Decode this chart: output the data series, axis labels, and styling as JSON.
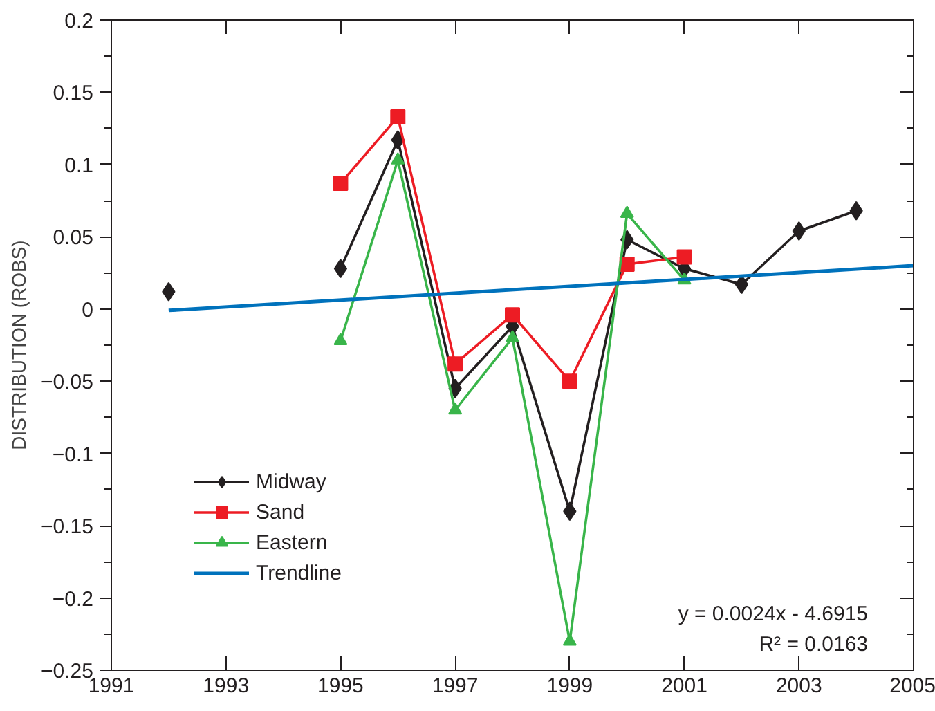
{
  "chart_data": {
    "type": "line",
    "ylabel": "DISTRIBUTION (ROBS)",
    "xlim": [
      1991,
      2005
    ],
    "xticks": [
      1991,
      1993,
      1995,
      1997,
      1999,
      2001,
      2003,
      2005
    ],
    "ylim": [
      -0.25,
      0.2
    ],
    "yticks": [
      -0.25,
      -0.2,
      -0.15,
      -0.1,
      -0.05,
      0,
      0.05,
      0.1,
      0.15,
      0.2
    ],
    "grid": false,
    "legend": "bottom left",
    "annotations": [
      "y = 0.0024x - 4.6915",
      "R² = 0.0163"
    ],
    "series": [
      {
        "name": "Midway",
        "color": "#231f20",
        "marker": "diamond",
        "x": [
          1992,
          1993,
          1995,
          1996,
          1997,
          1998,
          1999,
          2000,
          2001,
          2002,
          2003,
          2004
        ],
        "values": [
          0.012,
          null,
          0.028,
          0.117,
          -0.055,
          -0.012,
          -0.14,
          0.048,
          0.028,
          0.017,
          0.054,
          0.068
        ]
      },
      {
        "name": "Sand",
        "color": "#ed1c24",
        "marker": "square",
        "x": [
          1995,
          1996,
          1997,
          1998,
          1999,
          2000,
          2001
        ],
        "values": [
          0.087,
          0.133,
          -0.038,
          -0.004,
          -0.05,
          0.031,
          0.036
        ]
      },
      {
        "name": "Eastern",
        "color": "#39b54a",
        "marker": "triangle",
        "x": [
          1995,
          1996,
          1997,
          1998,
          1999,
          2000,
          2001
        ],
        "values": [
          -0.022,
          0.103,
          -0.07,
          -0.02,
          -0.23,
          0.066,
          0.02
        ]
      },
      {
        "name": "Trendline",
        "color": "#0072bc",
        "marker": "none",
        "x": [
          1992,
          2005
        ],
        "values": [
          -0.001,
          0.03
        ]
      }
    ]
  }
}
